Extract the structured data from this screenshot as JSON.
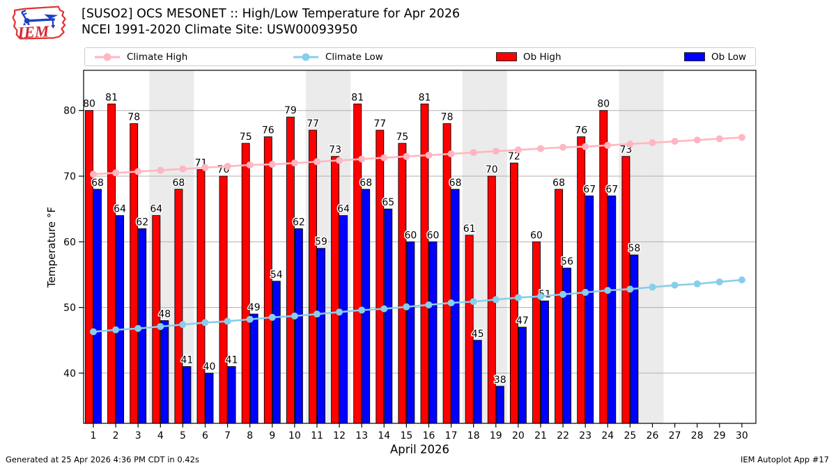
{
  "header": {
    "title_line1": "[SUSO2] OCS MESONET :: High/Low Temperature for Apr 2026",
    "title_line2": "NCEI 1991-2020 Climate Site: USW00093950",
    "logo_text": "IEM"
  },
  "legend": {
    "items": [
      {
        "label": "Climate High",
        "type": "line",
        "color": "#ffb6c1"
      },
      {
        "label": "Climate Low",
        "type": "line",
        "color": "#87ceeb"
      },
      {
        "label": "Ob High",
        "type": "bar",
        "color": "#ff0000"
      },
      {
        "label": "Ob Low",
        "type": "bar",
        "color": "#0000ff"
      }
    ]
  },
  "colors": {
    "ob_high": "#ff0000",
    "ob_low": "#0000ff",
    "climate_high": "#ffb6c1",
    "climate_low": "#87ceeb",
    "weekend_band": "#ebebeb",
    "gridline": "#b0b0b0",
    "axis": "#000000"
  },
  "chart_data": {
    "type": "bar",
    "title": "[SUSO2] OCS MESONET :: High/Low Temperature for Apr 2026",
    "subtitle": "NCEI 1991-2020 Climate Site: USW00093950",
    "xlabel": "April 2026",
    "ylabel": "Temperature °F",
    "ylim": [
      31.5,
      86
    ],
    "yticks": [
      40,
      50,
      60,
      70,
      80
    ],
    "grid": "horizontal",
    "legend_position": "top",
    "weekend_shading_days": [
      4,
      5,
      11,
      12,
      18,
      19,
      25,
      26
    ],
    "x": [
      1,
      2,
      3,
      4,
      5,
      6,
      7,
      8,
      9,
      10,
      11,
      12,
      13,
      14,
      15,
      16,
      17,
      18,
      19,
      20,
      21,
      22,
      23,
      24,
      25,
      26,
      27,
      28,
      29,
      30
    ],
    "series": [
      {
        "name": "Ob High",
        "type": "bar",
        "color": "#ff0000",
        "values": [
          80,
          81,
          78,
          64,
          68,
          71,
          70,
          75,
          76,
          79,
          77,
          73,
          81,
          77,
          75,
          81,
          78,
          61,
          70,
          72,
          60,
          68,
          76,
          80,
          73,
          null,
          null,
          null,
          null,
          null
        ]
      },
      {
        "name": "Ob Low",
        "type": "bar",
        "color": "#0000ff",
        "values": [
          68,
          64,
          62,
          48,
          41,
          40,
          41,
          49,
          54,
          62,
          59,
          64,
          68,
          65,
          60,
          60,
          68,
          45,
          38,
          47,
          51,
          56,
          67,
          67,
          58,
          null,
          null,
          null,
          null,
          null
        ]
      },
      {
        "name": "Climate High",
        "type": "line",
        "color": "#ffb6c1",
        "values": [
          70.3,
          70.5,
          70.7,
          70.9,
          71.1,
          71.3,
          71.5,
          71.7,
          71.8,
          72.0,
          72.2,
          72.4,
          72.6,
          72.8,
          73.0,
          73.2,
          73.4,
          73.6,
          73.8,
          74.0,
          74.2,
          74.4,
          74.5,
          74.7,
          74.9,
          75.1,
          75.3,
          75.5,
          75.7,
          75.9
        ]
      },
      {
        "name": "Climate Low",
        "type": "line",
        "color": "#87ceeb",
        "values": [
          46.3,
          46.6,
          46.8,
          47.1,
          47.4,
          47.7,
          47.9,
          48.2,
          48.5,
          48.7,
          49.0,
          49.3,
          49.6,
          49.8,
          50.1,
          50.4,
          50.7,
          50.9,
          51.2,
          51.5,
          51.7,
          52.0,
          52.3,
          52.6,
          52.8,
          53.1,
          53.4,
          53.6,
          53.9,
          54.2
        ]
      }
    ]
  },
  "footer": {
    "generated": "Generated at 25 Apr 2026 4:36 PM CDT in 0.42s",
    "app": "IEM Autoplot App #17"
  }
}
